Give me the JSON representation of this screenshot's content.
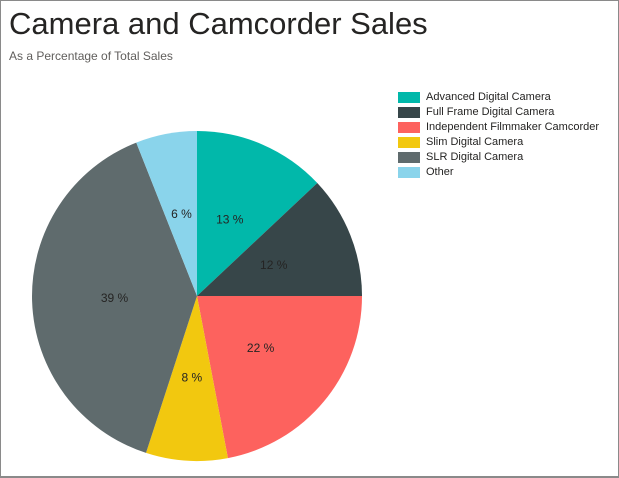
{
  "window": {
    "background": "#FFFFFF",
    "border_color": "#8A8A8A"
  },
  "header": {
    "title": "Camera and Camcorder Sales",
    "subtitle": "As a Percentage of Total Sales",
    "title_color": "#252423",
    "subtitle_color": "#605E5C"
  },
  "chart_data": {
    "type": "pie",
    "title": "Camera and Camcorder Sales",
    "subtitle": "As a Percentage of Total Sales",
    "unit": "%",
    "direction": "clockwise",
    "start_angle_deg": 0,
    "legend_position": "right-top",
    "label_color": "#252423",
    "slices": [
      {
        "label": "Advanced Digital Camera",
        "value": 13,
        "display": "13 %",
        "color": "#01B8AA"
      },
      {
        "label": "Full Frame Digital Camera",
        "value": 12,
        "display": "12 %",
        "color": "#374649"
      },
      {
        "label": "Independent Filmmaker Camcorder",
        "value": 22,
        "display": "22 %",
        "color": "#FD625E"
      },
      {
        "label": "Slim Digital Camera",
        "value": 8,
        "display": "8 %",
        "color": "#F2C80F"
      },
      {
        "label": "SLR Digital Camera",
        "value": 39,
        "display": "39 %",
        "color": "#5F6B6D"
      },
      {
        "label": "Other",
        "value": 6,
        "display": "6 %",
        "color": "#8AD4EB"
      }
    ]
  }
}
